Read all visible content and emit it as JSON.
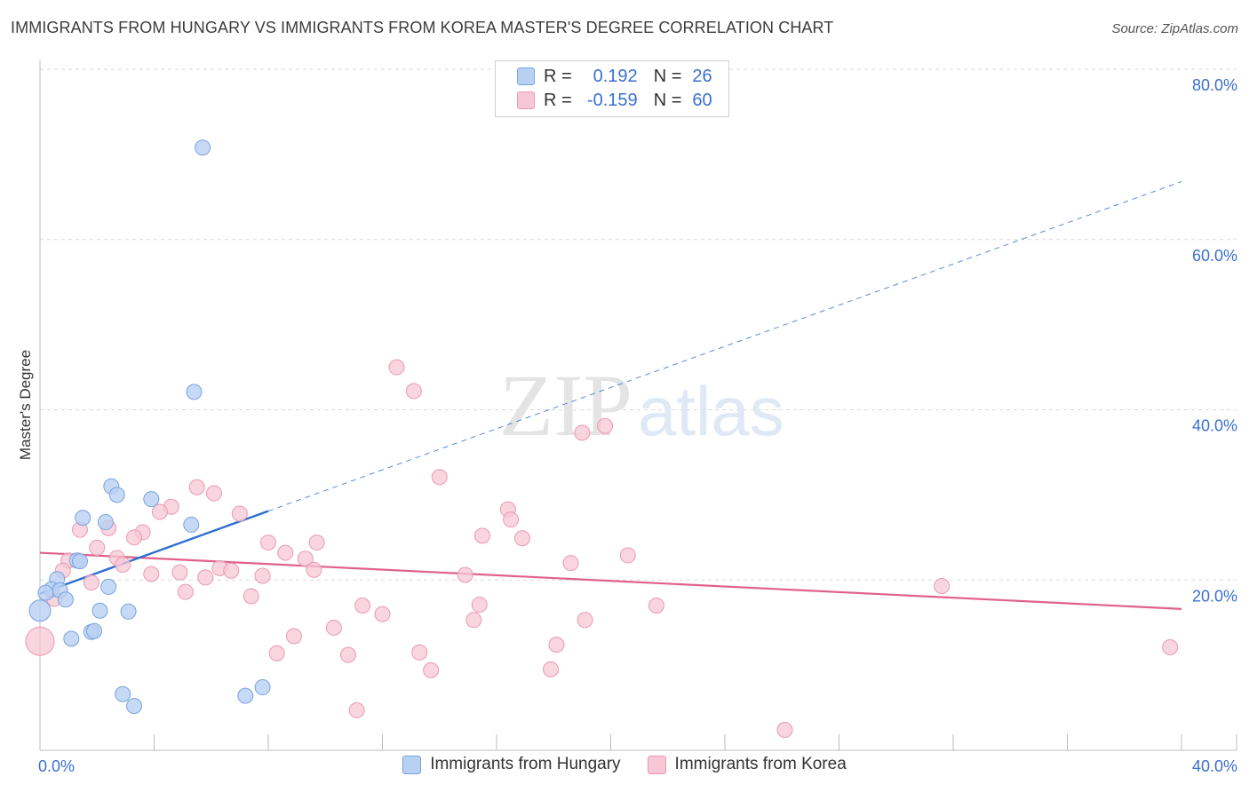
{
  "title": "IMMIGRANTS FROM HUNGARY VS IMMIGRANTS FROM KOREA MASTER'S DEGREE CORRELATION CHART",
  "source": "Source: ZipAtlas.com",
  "watermark": {
    "zip": "ZIP",
    "atlas": "atlas"
  },
  "legend": {
    "r_label": "R =",
    "n_label": "N =",
    "hungary": {
      "r": "0.192",
      "n": "26"
    },
    "korea": {
      "r": "-0.159",
      "n": "60"
    }
  },
  "colors": {
    "hungary_fill": "#b8d0f2",
    "hungary_stroke": "#7aa3de",
    "hungary_line": "#2e6fd0",
    "korea_fill": "#f7c7d6",
    "korea_stroke": "#e99ab4",
    "korea_line": "#e0608a",
    "axis_text": "#3a6fd1",
    "grid": "#d8d8d8"
  },
  "chart_data": {
    "type": "scatter",
    "title": "IMMIGRANTS FROM HUNGARY VS IMMIGRANTS FROM KOREA MASTER'S DEGREE CORRELATION CHART",
    "xlabel": "",
    "ylabel": "Master's Degree",
    "xlim": [
      0,
      40
    ],
    "ylim": [
      0,
      80
    ],
    "x_tick_labels": [
      "0.0%",
      "40.0%"
    ],
    "y_ticks": [
      20,
      40,
      60,
      80
    ],
    "y_tick_labels": [
      "20.0%",
      "40.0%",
      "60.0%",
      "80.0%"
    ],
    "grid": true,
    "legend_position": "bottom-center",
    "series": [
      {
        "name": "Immigrants from Hungary",
        "r": 0.192,
        "n": 26,
        "trend": {
          "x0": 0,
          "y0": 18.4,
          "x1": 8,
          "y1": 28.1,
          "dashed_to_x": 40,
          "dashed_to_y": 66.8
        },
        "points": [
          {
            "x": 5.7,
            "y": 70.8
          },
          {
            "x": 5.4,
            "y": 42.1
          },
          {
            "x": 2.5,
            "y": 31.0
          },
          {
            "x": 2.7,
            "y": 30.0
          },
          {
            "x": 3.9,
            "y": 29.5
          },
          {
            "x": 1.5,
            "y": 27.3
          },
          {
            "x": 2.3,
            "y": 26.8
          },
          {
            "x": 5.3,
            "y": 26.5
          },
          {
            "x": 1.3,
            "y": 22.3
          },
          {
            "x": 1.4,
            "y": 22.2
          },
          {
            "x": 0.6,
            "y": 20.1
          },
          {
            "x": 2.4,
            "y": 19.2
          },
          {
            "x": 0.4,
            "y": 18.9
          },
          {
            "x": 0.7,
            "y": 18.8
          },
          {
            "x": 0.9,
            "y": 17.7
          },
          {
            "x": 0.0,
            "y": 16.4
          },
          {
            "x": 2.1,
            "y": 16.4
          },
          {
            "x": 3.1,
            "y": 16.3
          },
          {
            "x": 1.8,
            "y": 13.9
          },
          {
            "x": 1.9,
            "y": 14.0
          },
          {
            "x": 1.1,
            "y": 13.1
          },
          {
            "x": 7.8,
            "y": 7.4
          },
          {
            "x": 2.9,
            "y": 6.6
          },
          {
            "x": 7.2,
            "y": 6.4
          },
          {
            "x": 3.3,
            "y": 5.2
          },
          {
            "x": 0.2,
            "y": 18.5
          }
        ]
      },
      {
        "name": "Immigrants from Korea",
        "r": -0.159,
        "n": 60,
        "trend": {
          "x0": 0,
          "y0": 23.2,
          "x1": 40,
          "y1": 16.6
        },
        "points": [
          {
            "x": 12.5,
            "y": 45.0
          },
          {
            "x": 13.1,
            "y": 42.2
          },
          {
            "x": 19.8,
            "y": 38.1
          },
          {
            "x": 19.0,
            "y": 37.3
          },
          {
            "x": 14.0,
            "y": 32.1
          },
          {
            "x": 5.5,
            "y": 30.9
          },
          {
            "x": 6.1,
            "y": 30.2
          },
          {
            "x": 4.6,
            "y": 28.6
          },
          {
            "x": 4.2,
            "y": 28.0
          },
          {
            "x": 16.4,
            "y": 28.3
          },
          {
            "x": 16.5,
            "y": 27.1
          },
          {
            "x": 7.0,
            "y": 27.8
          },
          {
            "x": 1.4,
            "y": 25.9
          },
          {
            "x": 2.4,
            "y": 26.1
          },
          {
            "x": 3.6,
            "y": 25.6
          },
          {
            "x": 3.3,
            "y": 25.0
          },
          {
            "x": 15.5,
            "y": 25.2
          },
          {
            "x": 16.9,
            "y": 24.9
          },
          {
            "x": 8.0,
            "y": 24.4
          },
          {
            "x": 9.7,
            "y": 24.4
          },
          {
            "x": 2.0,
            "y": 23.8
          },
          {
            "x": 8.6,
            "y": 23.2
          },
          {
            "x": 20.6,
            "y": 22.9
          },
          {
            "x": 2.7,
            "y": 22.6
          },
          {
            "x": 9.3,
            "y": 22.5
          },
          {
            "x": 1.0,
            "y": 22.3
          },
          {
            "x": 18.6,
            "y": 22.0
          },
          {
            "x": 2.9,
            "y": 21.8
          },
          {
            "x": 6.3,
            "y": 21.4
          },
          {
            "x": 9.6,
            "y": 21.2
          },
          {
            "x": 0.8,
            "y": 21.1
          },
          {
            "x": 4.9,
            "y": 20.9
          },
          {
            "x": 6.7,
            "y": 21.1
          },
          {
            "x": 3.9,
            "y": 20.7
          },
          {
            "x": 5.8,
            "y": 20.3
          },
          {
            "x": 7.8,
            "y": 20.5
          },
          {
            "x": 14.9,
            "y": 20.6
          },
          {
            "x": 1.8,
            "y": 19.7
          },
          {
            "x": 31.6,
            "y": 19.3
          },
          {
            "x": 5.1,
            "y": 18.6
          },
          {
            "x": 7.4,
            "y": 18.1
          },
          {
            "x": 0.5,
            "y": 17.8
          },
          {
            "x": 11.3,
            "y": 17.0
          },
          {
            "x": 15.4,
            "y": 17.1
          },
          {
            "x": 21.6,
            "y": 17.0
          },
          {
            "x": 12.0,
            "y": 16.0
          },
          {
            "x": 15.2,
            "y": 15.3
          },
          {
            "x": 19.1,
            "y": 15.3
          },
          {
            "x": 10.3,
            "y": 14.4
          },
          {
            "x": 8.9,
            "y": 13.4
          },
          {
            "x": 0.0,
            "y": 12.8
          },
          {
            "x": 18.1,
            "y": 12.4
          },
          {
            "x": 39.6,
            "y": 12.1
          },
          {
            "x": 8.3,
            "y": 11.4
          },
          {
            "x": 10.8,
            "y": 11.2
          },
          {
            "x": 13.3,
            "y": 11.5
          },
          {
            "x": 13.7,
            "y": 9.4
          },
          {
            "x": 17.9,
            "y": 9.5
          },
          {
            "x": 11.1,
            "y": 4.7
          },
          {
            "x": 26.1,
            "y": 2.4
          }
        ]
      }
    ]
  }
}
